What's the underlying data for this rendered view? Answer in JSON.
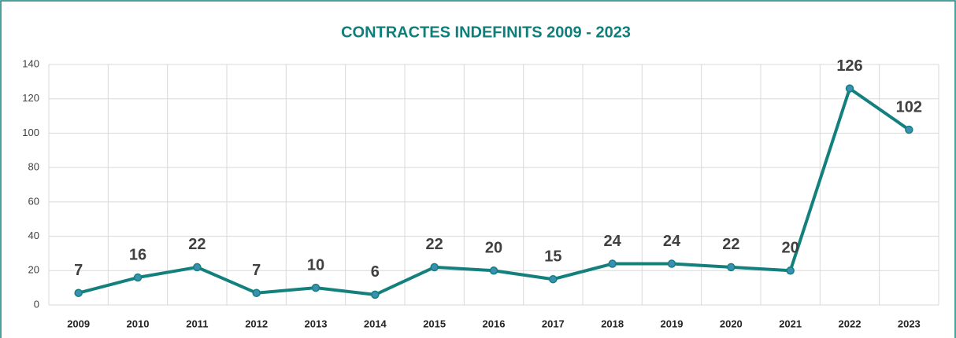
{
  "chart_data": {
    "type": "line",
    "title": "CONTRACTES INDEFINITS 2009 - 2023",
    "categories": [
      "2009",
      "2010",
      "2011",
      "2012",
      "2013",
      "2014",
      "2015",
      "2016",
      "2017",
      "2018",
      "2019",
      "2020",
      "2021",
      "2022",
      "2023"
    ],
    "values": [
      7,
      16,
      22,
      7,
      10,
      6,
      22,
      20,
      15,
      24,
      24,
      22,
      20,
      126,
      102
    ],
    "color": "#13807d",
    "marker_color": "#3b8fb3",
    "ylim": [
      0,
      140
    ],
    "yticks": [
      0,
      20,
      40,
      60,
      80,
      100,
      120,
      140
    ],
    "grid": true
  }
}
